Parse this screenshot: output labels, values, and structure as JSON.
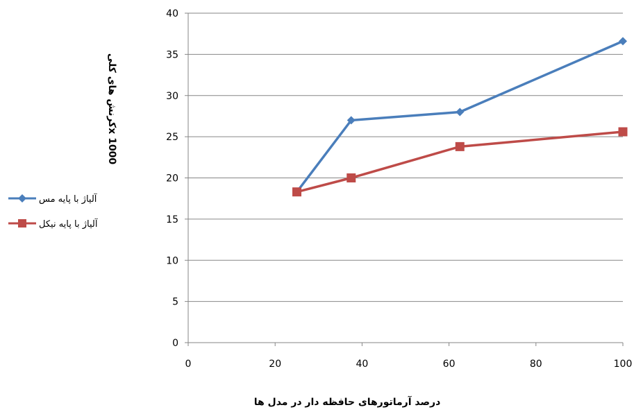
{
  "chart_data": {
    "type": "scatter",
    "title": "",
    "xlabel": "درصد آرماتورهای حافظه دار در مدل ها",
    "ylabel": "x 1000کرنش های کلی",
    "xlim": [
      0,
      100
    ],
    "ylim": [
      0,
      40
    ],
    "x_ticks": [
      0,
      20,
      40,
      60,
      80,
      100
    ],
    "y_ticks": [
      0,
      5,
      10,
      15,
      20,
      25,
      30,
      35,
      40
    ],
    "grid": "horizontal",
    "legend_position": "left",
    "series": [
      {
        "name": "آلیاژ با پایه مس",
        "color": "#4a7ebb",
        "marker": "diamond",
        "x": [
          25,
          37.5,
          62.5,
          100
        ],
        "y": [
          18.3,
          27.0,
          28.0,
          36.6
        ]
      },
      {
        "name": "آلیاژ با پایه نیکل",
        "color": "#be4b48",
        "marker": "square",
        "x": [
          25,
          37.5,
          62.5,
          100
        ],
        "y": [
          18.3,
          20.0,
          23.8,
          25.6
        ]
      }
    ]
  }
}
